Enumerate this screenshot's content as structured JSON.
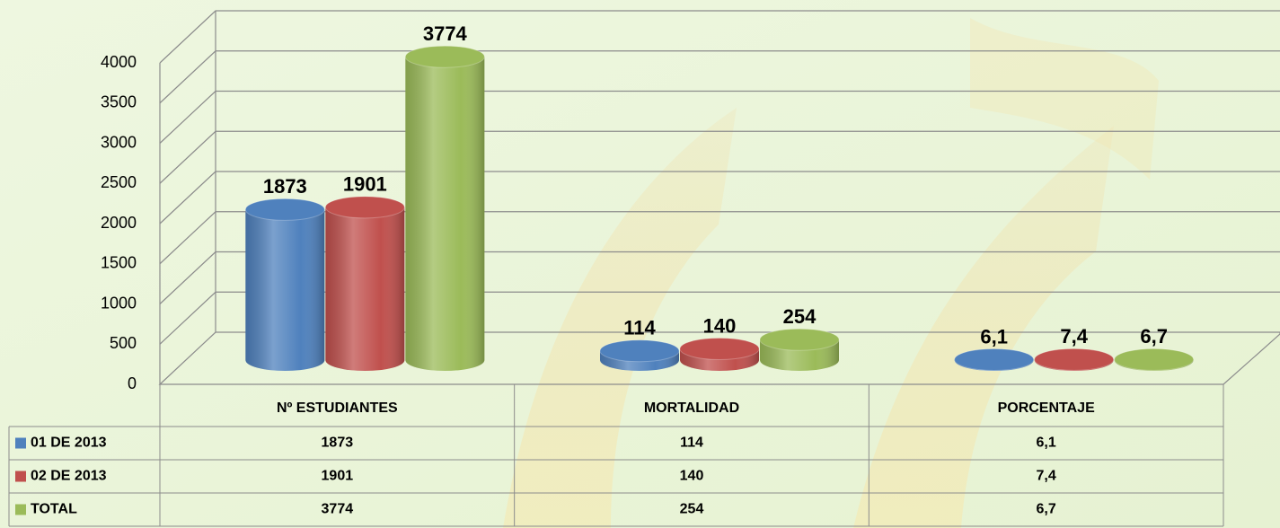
{
  "chart_data": {
    "type": "bar",
    "categories": [
      "Nº ESTUDIANTES",
      "MORTALIDAD",
      "PORCENTAJE"
    ],
    "series": [
      {
        "name": "01 DE 2013",
        "color": "#4f81bd",
        "values": [
          1873,
          114,
          6.1
        ],
        "value_labels": [
          "1873",
          "114",
          "6,1"
        ]
      },
      {
        "name": "02 DE 2013",
        "color": "#c0504d",
        "values": [
          1901,
          140,
          7.4
        ],
        "value_labels": [
          "1901",
          "140",
          "7,4"
        ]
      },
      {
        "name": "TOTAL",
        "color": "#9bbb59",
        "values": [
          3774,
          254,
          6.7
        ],
        "value_labels": [
          "3774",
          "254",
          "6,7"
        ]
      }
    ],
    "ylim": [
      0,
      4000
    ],
    "yticks": [
      0,
      500,
      1000,
      1500,
      2000,
      2500,
      3000,
      3500,
      4000
    ],
    "grid": true
  }
}
